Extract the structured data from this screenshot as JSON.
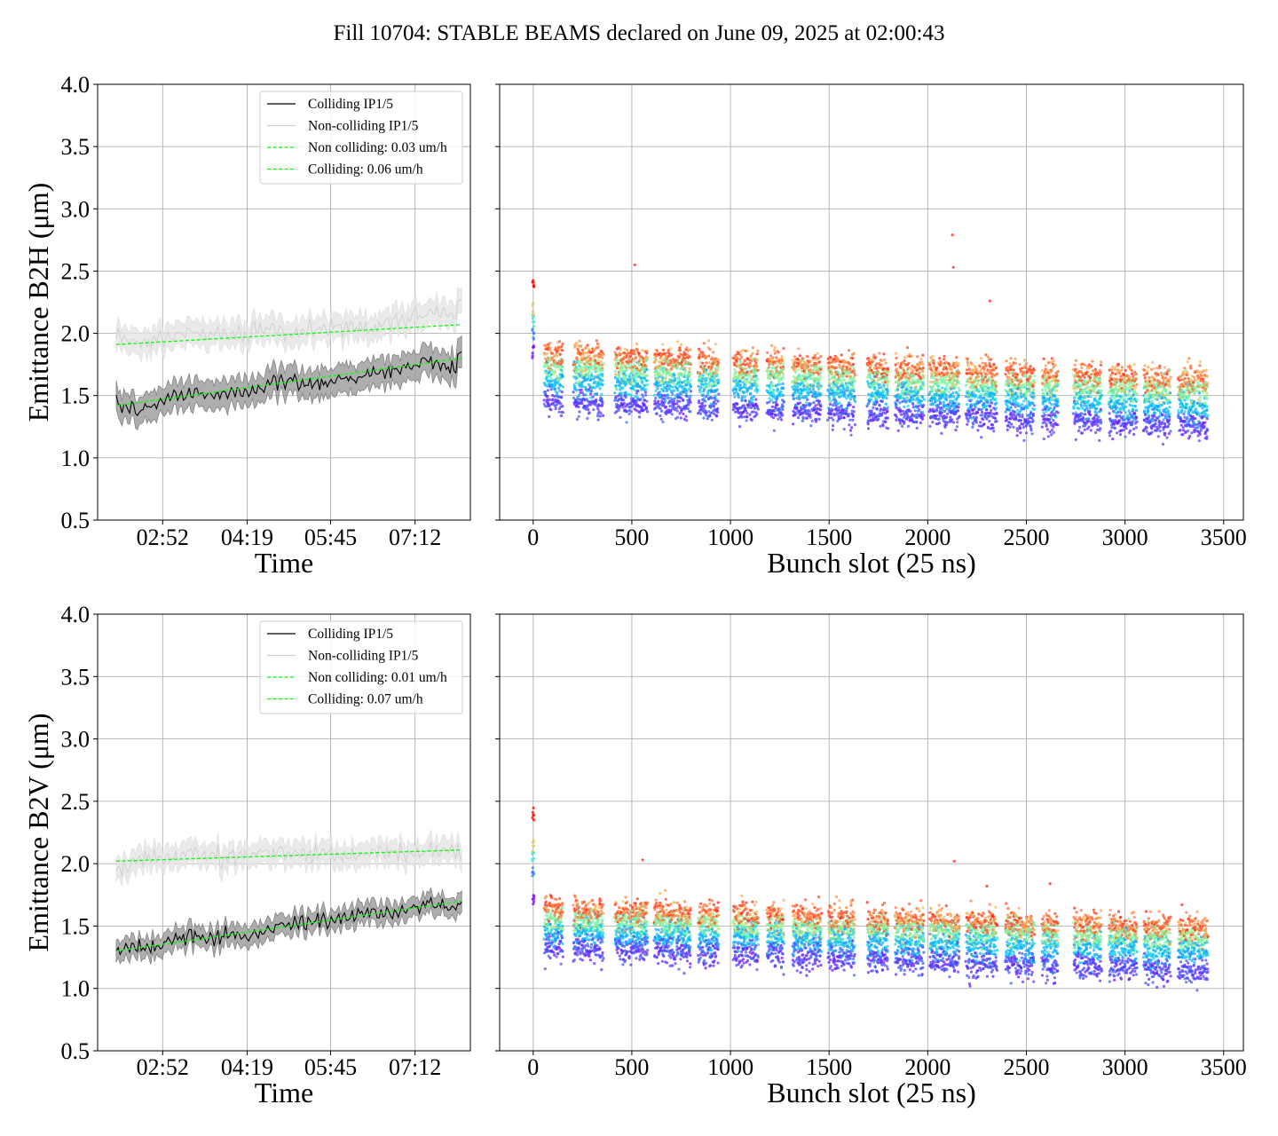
{
  "figure": {
    "title": "Fill 10704: STABLE BEAMS declared on June 09, 2025 at 02:00:43"
  },
  "chart_data": [
    {
      "id": "b2h-time",
      "type": "line",
      "xlabel": "Time",
      "ylabel": "Emittance B2H ($\\mu$m)",
      "ylim": [
        0.5,
        4.0
      ],
      "yticks": [
        "0.5",
        "1.0",
        "1.5",
        "2.0",
        "2.5",
        "3.0",
        "3.5",
        "4.0"
      ],
      "xlim_hours": [
        1.75,
        8.15
      ],
      "xticks": [
        {
          "label": "02:52",
          "hours": 2.867
        },
        {
          "label": "04:19",
          "hours": 4.317
        },
        {
          "label": "05:45",
          "hours": 5.75
        },
        {
          "label": "07:12",
          "hours": 7.2
        }
      ],
      "grid": true,
      "legend_position": "upper right",
      "legend": [
        {
          "label": "Colliding IP1/5",
          "color": "#000000",
          "style": "solid"
        },
        {
          "label": "Non-colliding IP1/5",
          "color": "#d0d0d0",
          "style": "solid"
        },
        {
          "label": "Non colliding: 0.03 um/h",
          "color": "#00ff00",
          "style": "dashed"
        },
        {
          "label": "Colliding: 0.06 um/h",
          "color": "#00ff00",
          "style": "dashed"
        }
      ],
      "series": [
        {
          "name": "Colliding IP1/5",
          "color": "#000000",
          "band_color": "#a0a0a0",
          "band_halfwidth": 0.11,
          "x_hours": [
            2.07,
            2.5,
            3.0,
            3.5,
            4.0,
            4.5,
            5.0,
            5.5,
            6.0,
            6.5,
            7.0,
            7.5,
            7.9,
            8.0
          ],
          "values": [
            1.43,
            1.37,
            1.49,
            1.52,
            1.5,
            1.57,
            1.62,
            1.6,
            1.64,
            1.67,
            1.72,
            1.78,
            1.72,
            1.87
          ]
        },
        {
          "name": "Non-colliding IP1/5",
          "color": "#d0d0d0",
          "band_color": "#e6e6e6",
          "band_halfwidth": 0.1,
          "x_hours": [
            2.07,
            2.5,
            3.0,
            3.5,
            4.0,
            4.5,
            5.0,
            5.5,
            6.0,
            6.5,
            7.0,
            7.5,
            7.9,
            8.0
          ],
          "values": [
            1.98,
            1.93,
            1.97,
            2.02,
            1.96,
            2.05,
            1.99,
            2.03,
            2.05,
            2.04,
            2.1,
            2.18,
            2.14,
            2.27
          ]
        },
        {
          "name": "Non colliding: 0.03 um/h",
          "color": "#00ff00",
          "dashed": true,
          "x_hours": [
            2.07,
            8.0
          ],
          "values": [
            1.91,
            2.07
          ]
        },
        {
          "name": "Colliding: 0.06 um/h",
          "color": "#00ff00",
          "dashed": true,
          "x_hours": [
            2.07,
            8.0
          ],
          "values": [
            1.42,
            1.8
          ]
        }
      ]
    },
    {
      "id": "b2h-bunch",
      "type": "scatter",
      "xlabel": "Bunch slot (25 ns)",
      "ylim": [
        0.5,
        4.0
      ],
      "xlim": [
        -170,
        3600
      ],
      "xticks": [
        "0",
        "500",
        "1000",
        "1500",
        "2000",
        "2500",
        "3000",
        "3500"
      ],
      "grid": true,
      "colormap": "rainbow (time: violet = early, red = late)",
      "trains": [
        [
          56,
          100
        ],
        [
          105,
          150
        ],
        [
          205,
          300
        ],
        [
          305,
          355
        ],
        [
          415,
          480
        ],
        [
          485,
          580
        ],
        [
          615,
          720
        ],
        [
          725,
          800
        ],
        [
          838,
          880
        ],
        [
          885,
          940
        ],
        [
          1015,
          1090
        ],
        [
          1095,
          1140
        ],
        [
          1185,
          1270
        ],
        [
          1315,
          1410
        ],
        [
          1415,
          1460
        ],
        [
          1495,
          1580
        ],
        [
          1585,
          1630
        ],
        [
          1695,
          1800
        ],
        [
          1835,
          1930
        ],
        [
          1935,
          1980
        ],
        [
          2010,
          2100
        ],
        [
          2105,
          2160
        ],
        [
          2195,
          2260
        ],
        [
          2265,
          2350
        ],
        [
          2395,
          2480
        ],
        [
          2485,
          2540
        ],
        [
          2580,
          2660
        ],
        [
          2740,
          2830
        ],
        [
          2835,
          2880
        ],
        [
          2920,
          3010
        ],
        [
          3015,
          3060
        ],
        [
          3095,
          3180
        ],
        [
          3185,
          3230
        ],
        [
          3270,
          3360
        ],
        [
          3365,
          3420
        ]
      ],
      "level_start": [
        1.46,
        1.62,
        1.73,
        1.84
      ],
      "level_end": [
        1.26,
        1.4,
        1.52,
        1.62
      ],
      "pilot_bunch": {
        "x": 0,
        "values": [
          1.85,
          2.0,
          2.1,
          2.2,
          2.38
        ]
      },
      "outliers": [
        {
          "x": 2125,
          "y": 2.79
        },
        {
          "x": 2130,
          "y": 2.53
        },
        {
          "x": 515,
          "y": 2.55
        },
        {
          "x": 2315,
          "y": 2.26
        }
      ]
    },
    {
      "id": "b2v-time",
      "type": "line",
      "xlabel": "Time",
      "ylabel": "Emittance B2V ($\\mu$m)",
      "ylim": [
        0.5,
        4.0
      ],
      "yticks": [
        "0.5",
        "1.0",
        "1.5",
        "2.0",
        "2.5",
        "3.0",
        "3.5",
        "4.0"
      ],
      "xlim_hours": [
        1.75,
        8.15
      ],
      "xticks": [
        {
          "label": "02:52",
          "hours": 2.867
        },
        {
          "label": "04:19",
          "hours": 4.317
        },
        {
          "label": "05:45",
          "hours": 5.75
        },
        {
          "label": "07:12",
          "hours": 7.2
        }
      ],
      "grid": true,
      "legend_position": "upper right",
      "legend": [
        {
          "label": "Colliding IP1/5",
          "color": "#000000",
          "style": "solid"
        },
        {
          "label": "Non-colliding IP1/5",
          "color": "#d0d0d0",
          "style": "solid"
        },
        {
          "label": "Non colliding: 0.01 um/h",
          "color": "#00ff00",
          "style": "dashed"
        },
        {
          "label": "Colliding: 0.07 um/h",
          "color": "#00ff00",
          "style": "dashed"
        }
      ],
      "series": [
        {
          "name": "Colliding IP1/5",
          "color": "#000000",
          "band_color": "#a0a0a0",
          "band_halfwidth": 0.08,
          "x_hours": [
            2.07,
            2.5,
            3.0,
            3.5,
            4.0,
            4.5,
            5.0,
            5.5,
            6.0,
            6.5,
            7.0,
            7.5,
            7.9,
            8.0
          ],
          "values": [
            1.29,
            1.32,
            1.37,
            1.42,
            1.41,
            1.44,
            1.51,
            1.53,
            1.58,
            1.6,
            1.63,
            1.67,
            1.66,
            1.69
          ]
        },
        {
          "name": "Non-colliding IP1/5",
          "color": "#d0d0d0",
          "band_color": "#e6e6e6",
          "band_halfwidth": 0.09,
          "x_hours": [
            2.07,
            2.5,
            3.0,
            3.5,
            4.0,
            4.5,
            5.0,
            5.5,
            6.0,
            6.5,
            7.0,
            7.5,
            7.9,
            8.0
          ],
          "values": [
            1.93,
            2.05,
            2.07,
            2.08,
            2.05,
            2.09,
            2.06,
            2.09,
            2.07,
            2.1,
            2.06,
            2.12,
            2.08,
            2.1
          ]
        },
        {
          "name": "Non colliding: 0.01 um/h",
          "color": "#00ff00",
          "dashed": true,
          "x_hours": [
            2.07,
            8.0
          ],
          "values": [
            2.02,
            2.11
          ]
        },
        {
          "name": "Colliding: 0.07 um/h",
          "color": "#00ff00",
          "dashed": true,
          "x_hours": [
            2.07,
            8.0
          ],
          "values": [
            1.3,
            1.7
          ]
        }
      ]
    },
    {
      "id": "b2v-bunch",
      "type": "scatter",
      "xlabel": "Bunch slot (25 ns)",
      "ylim": [
        0.5,
        4.0
      ],
      "xlim": [
        -170,
        3600
      ],
      "xticks": [
        "0",
        "500",
        "1000",
        "1500",
        "2000",
        "2500",
        "3000",
        "3500"
      ],
      "grid": true,
      "colormap": "rainbow (time: violet = early, red = late)",
      "trains": [
        [
          56,
          100
        ],
        [
          105,
          150
        ],
        [
          205,
          300
        ],
        [
          305,
          355
        ],
        [
          415,
          480
        ],
        [
          485,
          580
        ],
        [
          615,
          720
        ],
        [
          725,
          800
        ],
        [
          838,
          880
        ],
        [
          885,
          940
        ],
        [
          1015,
          1090
        ],
        [
          1095,
          1140
        ],
        [
          1185,
          1270
        ],
        [
          1315,
          1410
        ],
        [
          1415,
          1460
        ],
        [
          1495,
          1580
        ],
        [
          1585,
          1630
        ],
        [
          1695,
          1800
        ],
        [
          1835,
          1930
        ],
        [
          1935,
          1980
        ],
        [
          2010,
          2100
        ],
        [
          2105,
          2160
        ],
        [
          2195,
          2260
        ],
        [
          2265,
          2350
        ],
        [
          2395,
          2480
        ],
        [
          2485,
          2540
        ],
        [
          2580,
          2660
        ],
        [
          2740,
          2830
        ],
        [
          2835,
          2880
        ],
        [
          2920,
          3010
        ],
        [
          3015,
          3060
        ],
        [
          3095,
          3180
        ],
        [
          3185,
          3230
        ],
        [
          3270,
          3360
        ],
        [
          3365,
          3420
        ]
      ],
      "level_start": [
        1.34,
        1.46,
        1.55,
        1.64
      ],
      "level_end": [
        1.14,
        1.29,
        1.39,
        1.48
      ],
      "pilot_bunch": {
        "x": 0,
        "values": [
          1.72,
          1.95,
          2.05,
          2.15,
          2.4
        ]
      },
      "outliers": [
        {
          "x": 2135,
          "y": 2.02
        },
        {
          "x": 555,
          "y": 2.03
        },
        {
          "x": 2300,
          "y": 1.82
        },
        {
          "x": 2620,
          "y": 1.84
        }
      ]
    }
  ]
}
